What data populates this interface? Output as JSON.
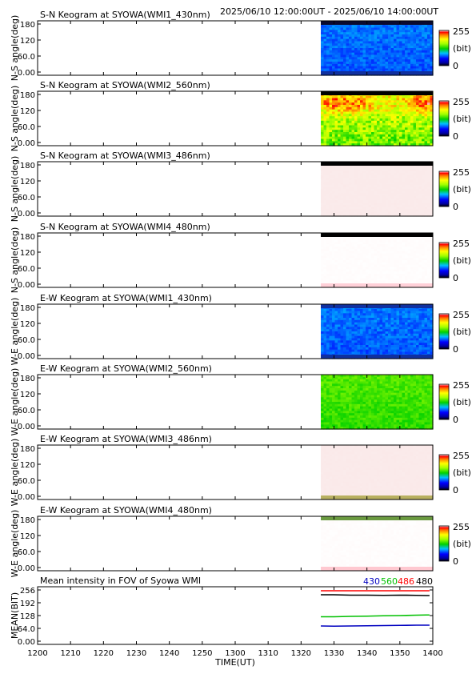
{
  "header": {
    "time_range": "2025/06/10 12:00:00UT - 2025/06/10 14:00:00UT"
  },
  "colorbar": {
    "max_label": "255",
    "unit_label": "(bit)",
    "min_label": "0"
  },
  "time_axis": {
    "label": "TIME(UT)",
    "ticks": [
      "1200",
      "1210",
      "1220",
      "1230",
      "1240",
      "1250",
      "1300",
      "1310",
      "1320",
      "1330",
      "1340",
      "1350",
      "1400"
    ]
  },
  "chart_data": [
    {
      "type": "heatmap",
      "title": "S-N Keogram at SYOWA(WMI1_430nm)",
      "ylabel": "N-S angle(deg)",
      "yticks": [
        "180",
        "120",
        "60.0",
        "0.00"
      ],
      "ylim": [
        0,
        180
      ],
      "data_start": "1326",
      "palette": "rainbow",
      "mean_level": 75,
      "edge_top": "#0a0a30",
      "edge_bottom": "#1030a0"
    },
    {
      "type": "heatmap",
      "title": "S-N Keogram at SYOWA(WMI2_560nm)",
      "ylabel": "N-S angle(deg)",
      "yticks": [
        "180",
        "120",
        "60.0",
        "0.00"
      ],
      "ylim": [
        0,
        180
      ],
      "data_start": "1326",
      "palette": "rainbow",
      "mean_level": 185,
      "edge_top": "#000000",
      "edge_bottom": ""
    },
    {
      "type": "heatmap",
      "title": "S-N Keogram at SYOWA(WMI3_486nm)",
      "ylabel": "N-S angle(deg)",
      "yticks": [
        "180",
        "120",
        "60.0",
        "0.00"
      ],
      "ylim": [
        0,
        180
      ],
      "data_start": "1326",
      "palette": "pink",
      "mean_level": 250,
      "edge_top": "#000000",
      "edge_bottom": ""
    },
    {
      "type": "heatmap",
      "title": "S-N Keogram at SYOWA(WMI4_480nm)",
      "ylabel": "N-S angle(deg)",
      "yticks": [
        "180",
        "120",
        "60.0",
        "0.00"
      ],
      "ylim": [
        0,
        180
      ],
      "data_start": "1326",
      "palette": "white",
      "mean_level": 252,
      "edge_top": "#000000",
      "edge_bottom": "#ffd0d8"
    },
    {
      "type": "heatmap",
      "title": "E-W Keogram at SYOWA(WMI1_430nm)",
      "ylabel": "W-E angle(deg)",
      "yticks": [
        "180",
        "120",
        "60.0",
        "0.00"
      ],
      "ylim": [
        0,
        180
      ],
      "data_start": "1326",
      "palette": "rainbow",
      "mean_level": 75,
      "edge_top": "#1030a0",
      "edge_bottom": "#1030a0"
    },
    {
      "type": "heatmap",
      "title": "E-W Keogram at SYOWA(WMI2_560nm)",
      "ylabel": "W-E angle(deg)",
      "yticks": [
        "180",
        "120",
        "60.0",
        "0.00"
      ],
      "ylim": [
        0,
        180
      ],
      "data_start": "1326",
      "palette": "rainbow",
      "mean_level": 140,
      "edge_top": "",
      "edge_bottom": ""
    },
    {
      "type": "heatmap",
      "title": "E-W Keogram at SYOWA(WMI3_486nm)",
      "ylabel": "W-E angle(deg)",
      "yticks": [
        "180",
        "120",
        "60.0",
        "0.00"
      ],
      "ylim": [
        0,
        180
      ],
      "data_start": "1326",
      "palette": "pink",
      "mean_level": 248,
      "edge_top": "",
      "edge_bottom": "#b8b060"
    },
    {
      "type": "heatmap",
      "title": "E-W Keogram at SYOWA(WMI4_480nm)",
      "ylabel": "W-E angle(deg)",
      "yticks": [
        "180",
        "120",
        "60.0",
        "0.00"
      ],
      "ylim": [
        0,
        180
      ],
      "data_start": "1326",
      "palette": "white",
      "mean_level": 252,
      "edge_top": "#6a9a40",
      "edge_bottom": "#ffc8d0"
    },
    {
      "type": "line",
      "title": "Mean intensity in FOV of Syowa WMI",
      "ylabel": "MEAN(BIT)",
      "yticks": [
        "256",
        "192",
        "128",
        "64.0",
        "0.00"
      ],
      "ylim": [
        0,
        256
      ],
      "series": [
        {
          "name": "430",
          "color": "#0000c0",
          "x": [
            1326,
            1330,
            1335,
            1340,
            1345,
            1350,
            1355,
            1358,
            1359
          ],
          "y": [
            76,
            75,
            76,
            77,
            78,
            79,
            80,
            80,
            80
          ]
        },
        {
          "name": "560",
          "color": "#00c000",
          "x": [
            1326,
            1330,
            1335,
            1340,
            1345,
            1350,
            1355,
            1358,
            1359
          ],
          "y": [
            122,
            122,
            124,
            125,
            127,
            128,
            130,
            131,
            131
          ]
        },
        {
          "name": "486",
          "color": "#ff0000",
          "x": [
            1326,
            1330,
            1335,
            1340,
            1345,
            1350,
            1355,
            1358,
            1359
          ],
          "y": [
            252,
            252,
            252,
            252,
            252,
            252,
            252,
            252,
            252
          ]
        },
        {
          "name": "480",
          "color": "#000000",
          "x": [
            1326,
            1330,
            1335,
            1340,
            1345,
            1350,
            1355,
            1358,
            1359
          ],
          "y": [
            232,
            232,
            230,
            230,
            229,
            230,
            229,
            228,
            228
          ]
        }
      ]
    }
  ]
}
